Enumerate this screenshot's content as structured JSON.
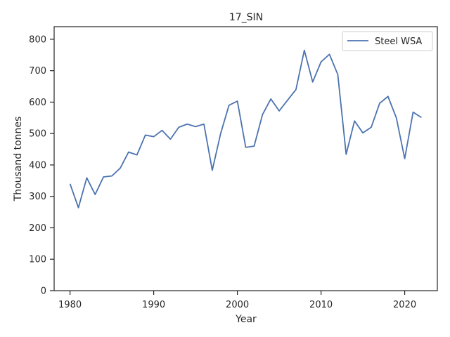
{
  "chart_data": {
    "type": "line",
    "title": "17_SIN",
    "xlabel": "Year",
    "ylabel": "Thousand tonnes",
    "xlim": [
      1978.1,
      2023.9
    ],
    "ylim": [
      0,
      840
    ],
    "xticks": [
      1980,
      1990,
      2000,
      2010,
      2020
    ],
    "yticks": [
      0,
      100,
      200,
      300,
      400,
      500,
      600,
      700,
      800
    ],
    "grid": false,
    "legend_position": "top-right",
    "series": [
      {
        "name": "Steel WSA",
        "color": "#4c72b0",
        "x": [
          1980,
          1981,
          1982,
          1983,
          1984,
          1985,
          1986,
          1987,
          1988,
          1989,
          1990,
          1991,
          1992,
          1993,
          1994,
          1995,
          1996,
          1997,
          1998,
          1999,
          2000,
          2001,
          2002,
          2003,
          2004,
          2005,
          2006,
          2007,
          2008,
          2009,
          2010,
          2011,
          2012,
          2013,
          2014,
          2015,
          2016,
          2017,
          2018,
          2019,
          2020,
          2021,
          2022
        ],
        "y": [
          340,
          264,
          359,
          306,
          362,
          365,
          390,
          441,
          432,
          495,
          490,
          510,
          482,
          520,
          530,
          522,
          530,
          383,
          500,
          590,
          603,
          456,
          460,
          560,
          610,
          572,
          606,
          640,
          765,
          664,
          728,
          752,
          688,
          434,
          540,
          502,
          520,
          596,
          618,
          550,
          420,
          568,
          551
        ]
      }
    ]
  }
}
